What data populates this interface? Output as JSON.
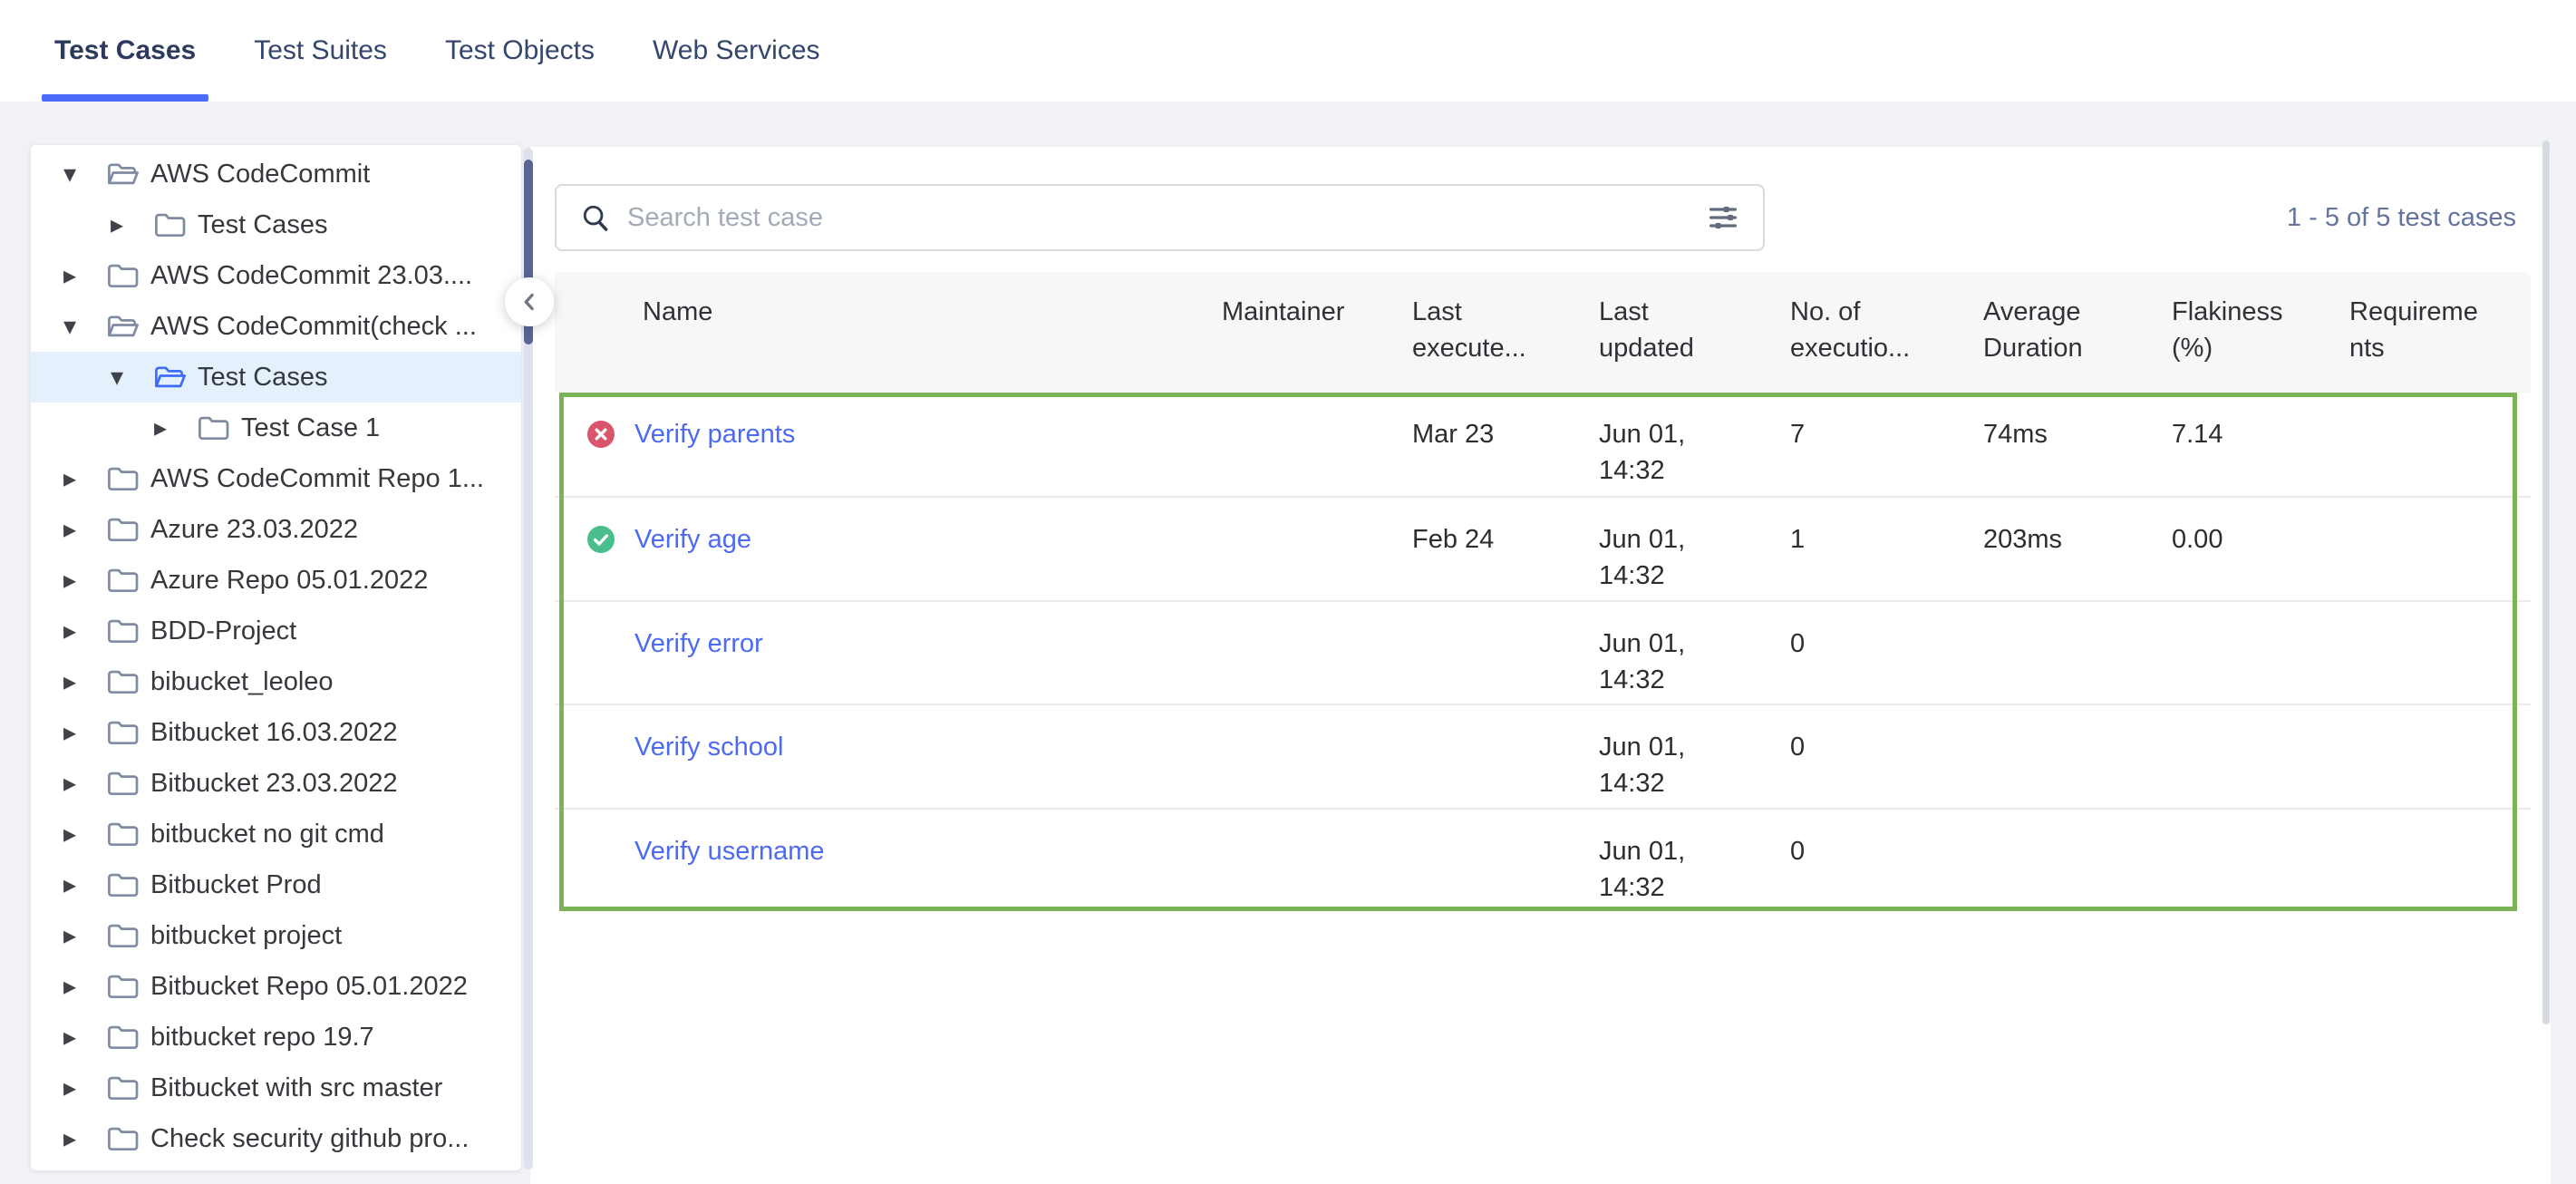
{
  "tabs": [
    {
      "label": "Test Cases",
      "active": true
    },
    {
      "label": "Test Suites",
      "active": false
    },
    {
      "label": "Test Objects",
      "active": false
    },
    {
      "label": "Web Services",
      "active": false
    }
  ],
  "sidebar": {
    "tree": [
      {
        "label": "AWS CodeCommit",
        "level": 0,
        "caret": "down",
        "folder": "open",
        "selected": false
      },
      {
        "label": "Test Cases",
        "level": 1,
        "caret": "right",
        "folder": "closed",
        "selected": false
      },
      {
        "label": "AWS CodeCommit 23.03....",
        "level": 0,
        "caret": "right",
        "folder": "closed",
        "selected": false
      },
      {
        "label": "AWS CodeCommit(check ...",
        "level": 0,
        "caret": "down",
        "folder": "open",
        "selected": false
      },
      {
        "label": "Test Cases",
        "level": 1,
        "caret": "down",
        "folder": "open-active",
        "selected": true
      },
      {
        "label": "Test Case 1",
        "level": 2,
        "caret": "right",
        "folder": "closed",
        "selected": false
      },
      {
        "label": "AWS CodeCommit Repo 1...",
        "level": 0,
        "caret": "right",
        "folder": "closed",
        "selected": false
      },
      {
        "label": "Azure 23.03.2022",
        "level": 0,
        "caret": "right",
        "folder": "closed",
        "selected": false
      },
      {
        "label": "Azure Repo 05.01.2022",
        "level": 0,
        "caret": "right",
        "folder": "closed",
        "selected": false
      },
      {
        "label": "BDD-Project",
        "level": 0,
        "caret": "right",
        "folder": "closed",
        "selected": false
      },
      {
        "label": "bibucket_leoleo",
        "level": 0,
        "caret": "right",
        "folder": "closed",
        "selected": false
      },
      {
        "label": "Bitbucket 16.03.2022",
        "level": 0,
        "caret": "right",
        "folder": "closed",
        "selected": false
      },
      {
        "label": "Bitbucket 23.03.2022",
        "level": 0,
        "caret": "right",
        "folder": "closed",
        "selected": false
      },
      {
        "label": "bitbucket no git cmd",
        "level": 0,
        "caret": "right",
        "folder": "closed",
        "selected": false
      },
      {
        "label": "Bitbucket Prod",
        "level": 0,
        "caret": "right",
        "folder": "closed",
        "selected": false
      },
      {
        "label": "bitbucket project",
        "level": 0,
        "caret": "right",
        "folder": "closed",
        "selected": false
      },
      {
        "label": "Bitbucket Repo 05.01.2022",
        "level": 0,
        "caret": "right",
        "folder": "closed",
        "selected": false
      },
      {
        "label": "bitbucket repo 19.7",
        "level": 0,
        "caret": "right",
        "folder": "closed",
        "selected": false
      },
      {
        "label": "Bitbucket with src master",
        "level": 0,
        "caret": "right",
        "folder": "closed",
        "selected": false
      },
      {
        "label": "Check security github pro...",
        "level": 0,
        "caret": "right",
        "folder": "closed",
        "selected": false
      }
    ]
  },
  "toolbar": {
    "search_placeholder": "Search test case",
    "results_summary": "1 - 5 of 5 test cases"
  },
  "table": {
    "columns": [
      "Name",
      "Maintainer",
      "Last execute...",
      "Last updated",
      "No. of executio...",
      "Average Duration",
      "Flakiness (%)",
      "Requirements"
    ],
    "rows": [
      {
        "status": "failed",
        "name": "Verify parents",
        "maintainer": "",
        "last_executed": "Mar 23",
        "last_updated": "Jun 01, 14:32",
        "executions": "7",
        "avg_duration": "74ms",
        "flakiness": "7.14",
        "requirements": ""
      },
      {
        "status": "passed",
        "name": "Verify age",
        "maintainer": "",
        "last_executed": "Feb 24",
        "last_updated": "Jun 01, 14:32",
        "executions": "1",
        "avg_duration": "203ms",
        "flakiness": "0.00",
        "requirements": ""
      },
      {
        "status": "",
        "name": "Verify error",
        "maintainer": "",
        "last_executed": "",
        "last_updated": "Jun 01, 14:32",
        "executions": "0",
        "avg_duration": "",
        "flakiness": "",
        "requirements": ""
      },
      {
        "status": "",
        "name": "Verify school",
        "maintainer": "",
        "last_executed": "",
        "last_updated": "Jun 01, 14:32",
        "executions": "0",
        "avg_duration": "",
        "flakiness": "",
        "requirements": ""
      },
      {
        "status": "",
        "name": "Verify username",
        "maintainer": "",
        "last_executed": "",
        "last_updated": "Jun 01, 14:32",
        "executions": "0",
        "avg_duration": "",
        "flakiness": "",
        "requirements": ""
      }
    ]
  },
  "colors": {
    "accent": "#4a6cf8",
    "link": "#4c6af2",
    "table_border_green": "#7cb356",
    "failed_red": "#d9556b",
    "passed_green": "#4abe8d",
    "summary_text": "#64749e",
    "selected_tree_bg": "#e4f0fc",
    "active_folder_blue": "#3e6df5"
  }
}
